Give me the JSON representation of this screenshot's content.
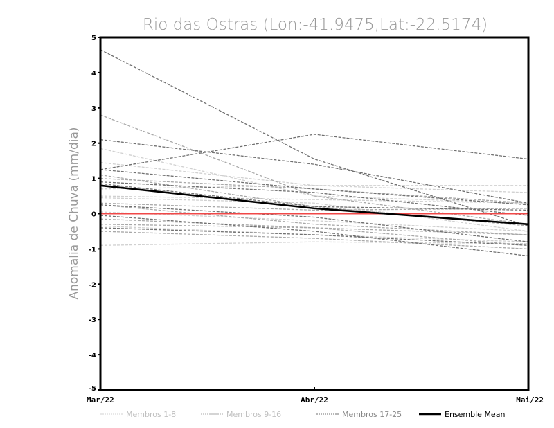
{
  "chart_data": {
    "type": "line",
    "title": "Rio das Ostras (Lon:-41.9475,Lat:-22.5174)",
    "xlabel": "",
    "ylabel": "Anomalia de Chuva (mm/dia)",
    "categories": [
      "Mar/22",
      "Abr/22",
      "Mai/22"
    ],
    "ylim": [
      -5,
      5
    ],
    "yticks": [
      -5,
      -4,
      -3,
      -2,
      -1,
      0,
      1,
      2,
      3,
      4,
      5
    ],
    "legend_position": "bottom",
    "groups": [
      {
        "name": "Membros 1-8",
        "color": "#d0d0d0",
        "members": [
          [
            1.85,
            0.5,
            0.3
          ],
          [
            1.45,
            0.8,
            0.8
          ],
          [
            0.7,
            0.8,
            0.6
          ],
          [
            0.5,
            0.4,
            0.3
          ],
          [
            0.05,
            -0.2,
            -0.5
          ],
          [
            -0.35,
            -0.6,
            -0.8
          ],
          [
            -0.9,
            -0.8,
            -0.85
          ],
          [
            0.45,
            0.3,
            -0.5
          ]
        ]
      },
      {
        "name": "Membros 9-16",
        "color": "#a8a8a8",
        "members": [
          [
            2.8,
            0.5,
            -0.3
          ],
          [
            1.0,
            0.7,
            0.3
          ],
          [
            0.25,
            -0.3,
            -0.6
          ],
          [
            -0.15,
            -0.4,
            -0.9
          ],
          [
            -0.5,
            -0.7,
            -1.0
          ],
          [
            1.1,
            0.2,
            -0.35
          ],
          [
            0.3,
            0.1,
            0.15
          ],
          [
            -0.3,
            -0.4,
            -0.6
          ]
        ]
      },
      {
        "name": "Membros 17-25",
        "color": "#707070",
        "members": [
          [
            4.65,
            1.55,
            -0.35
          ],
          [
            2.1,
            1.4,
            0.3
          ],
          [
            1.25,
            2.25,
            1.55
          ],
          [
            1.25,
            0.7,
            0.25
          ],
          [
            0.9,
            0.6,
            -0.05
          ],
          [
            0.25,
            -0.1,
            -0.8
          ],
          [
            -0.05,
            -0.5,
            -1.2
          ],
          [
            -0.4,
            -0.6,
            -0.9
          ],
          [
            0.85,
            0.2,
            0.1
          ]
        ]
      }
    ],
    "ensemble_mean": {
      "name": "Ensemble Mean",
      "color": "#000000",
      "values": [
        0.8,
        0.15,
        -0.3
      ]
    },
    "zero_line_color": "#f04848"
  }
}
